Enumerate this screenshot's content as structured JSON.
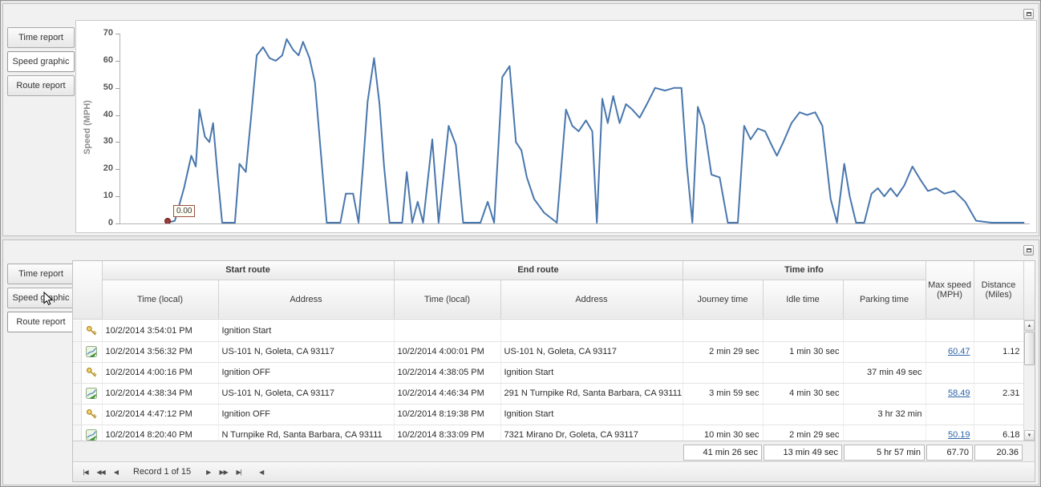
{
  "icons": {
    "scroll_up": "▲",
    "scroll_down": "▼",
    "scroll_left_arrow": "◀"
  },
  "panels": {
    "top": {
      "tabs": [
        {
          "label": "Time report",
          "selected": false
        },
        {
          "label": "Speed graphic",
          "selected": true
        },
        {
          "label": "Route report",
          "selected": false
        }
      ]
    },
    "bottom": {
      "tabs": [
        {
          "label": "Time report",
          "selected": false
        },
        {
          "label": "Speed graphic",
          "selected": false
        },
        {
          "label": "Route report",
          "selected": true
        }
      ]
    }
  },
  "chart_data": {
    "type": "line",
    "title": "",
    "xlabel": "",
    "ylabel": "Speed (MPH)",
    "ylim": [
      0,
      70
    ],
    "yticks": [
      0,
      10,
      20,
      30,
      40,
      50,
      60,
      70
    ],
    "grid": false,
    "legend": false,
    "line_color": "#4977ae",
    "start_marker": {
      "label": "0.00",
      "color": "#9e3a38",
      "x": 0.052,
      "y": 0
    },
    "points": [
      [
        0.052,
        0
      ],
      [
        0.06,
        1
      ],
      [
        0.07,
        13
      ],
      [
        0.078,
        25
      ],
      [
        0.083,
        21
      ],
      [
        0.087,
        42
      ],
      [
        0.093,
        32
      ],
      [
        0.098,
        30
      ],
      [
        0.102,
        37
      ],
      [
        0.107,
        18
      ],
      [
        0.112,
        0
      ],
      [
        0.126,
        0
      ],
      [
        0.131,
        22
      ],
      [
        0.138,
        19
      ],
      [
        0.144,
        40
      ],
      [
        0.15,
        62
      ],
      [
        0.157,
        65
      ],
      [
        0.164,
        61
      ],
      [
        0.171,
        60
      ],
      [
        0.178,
        62
      ],
      [
        0.183,
        68
      ],
      [
        0.19,
        64
      ],
      [
        0.196,
        62
      ],
      [
        0.201,
        67
      ],
      [
        0.208,
        61
      ],
      [
        0.214,
        52
      ],
      [
        0.22,
        28
      ],
      [
        0.227,
        0
      ],
      [
        0.242,
        0
      ],
      [
        0.248,
        11
      ],
      [
        0.256,
        11
      ],
      [
        0.262,
        0
      ],
      [
        0.267,
        22
      ],
      [
        0.272,
        45
      ],
      [
        0.279,
        61
      ],
      [
        0.285,
        44
      ],
      [
        0.29,
        21
      ],
      [
        0.296,
        0
      ],
      [
        0.31,
        0
      ],
      [
        0.315,
        19
      ],
      [
        0.321,
        0
      ],
      [
        0.327,
        8
      ],
      [
        0.333,
        0
      ],
      [
        0.343,
        31
      ],
      [
        0.35,
        0
      ],
      [
        0.361,
        36
      ],
      [
        0.369,
        29
      ],
      [
        0.377,
        0
      ],
      [
        0.396,
        0
      ],
      [
        0.404,
        8
      ],
      [
        0.411,
        0
      ],
      [
        0.42,
        54
      ],
      [
        0.428,
        58
      ],
      [
        0.435,
        30
      ],
      [
        0.441,
        27
      ],
      [
        0.447,
        17
      ],
      [
        0.455,
        9
      ],
      [
        0.466,
        4
      ],
      [
        0.48,
        0
      ],
      [
        0.49,
        42
      ],
      [
        0.497,
        36
      ],
      [
        0.504,
        34
      ],
      [
        0.512,
        38
      ],
      [
        0.519,
        34
      ],
      [
        0.524,
        0
      ],
      [
        0.53,
        46
      ],
      [
        0.536,
        37
      ],
      [
        0.542,
        47
      ],
      [
        0.549,
        37
      ],
      [
        0.556,
        44
      ],
      [
        0.563,
        42
      ],
      [
        0.571,
        39
      ],
      [
        0.579,
        44
      ],
      [
        0.588,
        50
      ],
      [
        0.599,
        49
      ],
      [
        0.609,
        50
      ],
      [
        0.617,
        50
      ],
      [
        0.623,
        21
      ],
      [
        0.629,
        0
      ],
      [
        0.635,
        43
      ],
      [
        0.642,
        36
      ],
      [
        0.65,
        18
      ],
      [
        0.659,
        17
      ],
      [
        0.668,
        0
      ],
      [
        0.679,
        0
      ],
      [
        0.686,
        36
      ],
      [
        0.693,
        31
      ],
      [
        0.701,
        35
      ],
      [
        0.709,
        34
      ],
      [
        0.716,
        29
      ],
      [
        0.722,
        25
      ],
      [
        0.729,
        30
      ],
      [
        0.738,
        37
      ],
      [
        0.747,
        41
      ],
      [
        0.755,
        40
      ],
      [
        0.764,
        41
      ],
      [
        0.772,
        36
      ],
      [
        0.781,
        9
      ],
      [
        0.788,
        0
      ],
      [
        0.796,
        22
      ],
      [
        0.802,
        10
      ],
      [
        0.809,
        0
      ],
      [
        0.818,
        0
      ],
      [
        0.826,
        11
      ],
      [
        0.833,
        13
      ],
      [
        0.84,
        10
      ],
      [
        0.847,
        13
      ],
      [
        0.854,
        10
      ],
      [
        0.862,
        14
      ],
      [
        0.871,
        21
      ],
      [
        0.88,
        16
      ],
      [
        0.888,
        12
      ],
      [
        0.897,
        13
      ],
      [
        0.906,
        11
      ],
      [
        0.917,
        12
      ],
      [
        0.929,
        8
      ],
      [
        0.941,
        1
      ],
      [
        0.958,
        0
      ],
      [
        0.975,
        0
      ],
      [
        0.994,
        0
      ]
    ]
  },
  "grid": {
    "groups": [
      {
        "label": "Start route"
      },
      {
        "label": "End route"
      },
      {
        "label": "Time info"
      }
    ],
    "columns": [
      {
        "label": "Time (local)"
      },
      {
        "label": "Address"
      },
      {
        "label": "Time (local)"
      },
      {
        "label": "Address"
      },
      {
        "label": "Journey time"
      },
      {
        "label": "Idle time"
      },
      {
        "label": "Parking time"
      },
      {
        "label": "Max speed",
        "sub": "(MPH)"
      },
      {
        "label": "Distance",
        "sub": "(Miles)"
      }
    ],
    "rows": [
      {
        "icon": "key",
        "start_time": "10/2/2014 3:54:01 PM",
        "start_address": "Ignition Start",
        "end_time": "",
        "end_address": "",
        "journey": "",
        "idle": "",
        "parking": "",
        "max_speed": "",
        "max_speed_link": false,
        "distance": ""
      },
      {
        "icon": "route",
        "start_time": "10/2/2014 3:56:32 PM",
        "start_address": "US-101 N, Goleta, CA 93117",
        "end_time": "10/2/2014 4:00:01 PM",
        "end_address": "US-101 N, Goleta, CA 93117",
        "journey": "2 min 29 sec",
        "idle": "1 min 30 sec",
        "parking": "",
        "max_speed": "60.47",
        "max_speed_link": true,
        "distance": "1.12"
      },
      {
        "icon": "key",
        "start_time": "10/2/2014 4:00:16 PM",
        "start_address": "Ignition OFF",
        "end_time": "10/2/2014 4:38:05 PM",
        "end_address": "Ignition Start",
        "journey": "",
        "idle": "",
        "parking": "37 min 49 sec",
        "max_speed": "",
        "max_speed_link": false,
        "distance": ""
      },
      {
        "icon": "route",
        "start_time": "10/2/2014 4:38:34 PM",
        "start_address": "US-101 N, Goleta, CA 93117",
        "end_time": "10/2/2014 4:46:34 PM",
        "end_address": "291 N Turnpike Rd, Santa Barbara, CA 93111",
        "journey": "3 min 59 sec",
        "idle": "4 min 30 sec",
        "parking": "",
        "max_speed": "58.49",
        "max_speed_link": true,
        "distance": "2.31"
      },
      {
        "icon": "key",
        "start_time": "10/2/2014 4:47:12 PM",
        "start_address": "Ignition OFF",
        "end_time": "10/2/2014 8:19:38 PM",
        "end_address": "Ignition Start",
        "journey": "",
        "idle": "",
        "parking": "3 hr 32 min",
        "max_speed": "",
        "max_speed_link": false,
        "distance": ""
      },
      {
        "icon": "route",
        "start_time": "10/2/2014 8:20:40 PM",
        "start_address": "N Turnpike Rd, Santa Barbara, CA 93111",
        "end_time": "10/2/2014 8:33:09 PM",
        "end_address": "7321 Mirano Dr, Goleta, CA 93117",
        "journey": "10 min 30 sec",
        "idle": "2 min 29 sec",
        "parking": "",
        "max_speed": "50.19",
        "max_speed_link": true,
        "distance": "6.18"
      }
    ],
    "summary": {
      "journey": "41 min 26 sec",
      "idle": "13 min 49 sec",
      "parking": "5 hr 57 min",
      "max_speed": "67.70",
      "distance": "20.36"
    },
    "pager": {
      "record_text": "Record 1 of 15",
      "buttons": [
        {
          "name": "first-record",
          "glyph": "|◀"
        },
        {
          "name": "prev-page",
          "glyph": "◀◀"
        },
        {
          "name": "prev-record",
          "glyph": "◀"
        },
        {
          "name": "next-record",
          "glyph": "▶"
        },
        {
          "name": "next-page",
          "glyph": "▶▶"
        },
        {
          "name": "last-record",
          "glyph": "▶|"
        }
      ]
    }
  }
}
